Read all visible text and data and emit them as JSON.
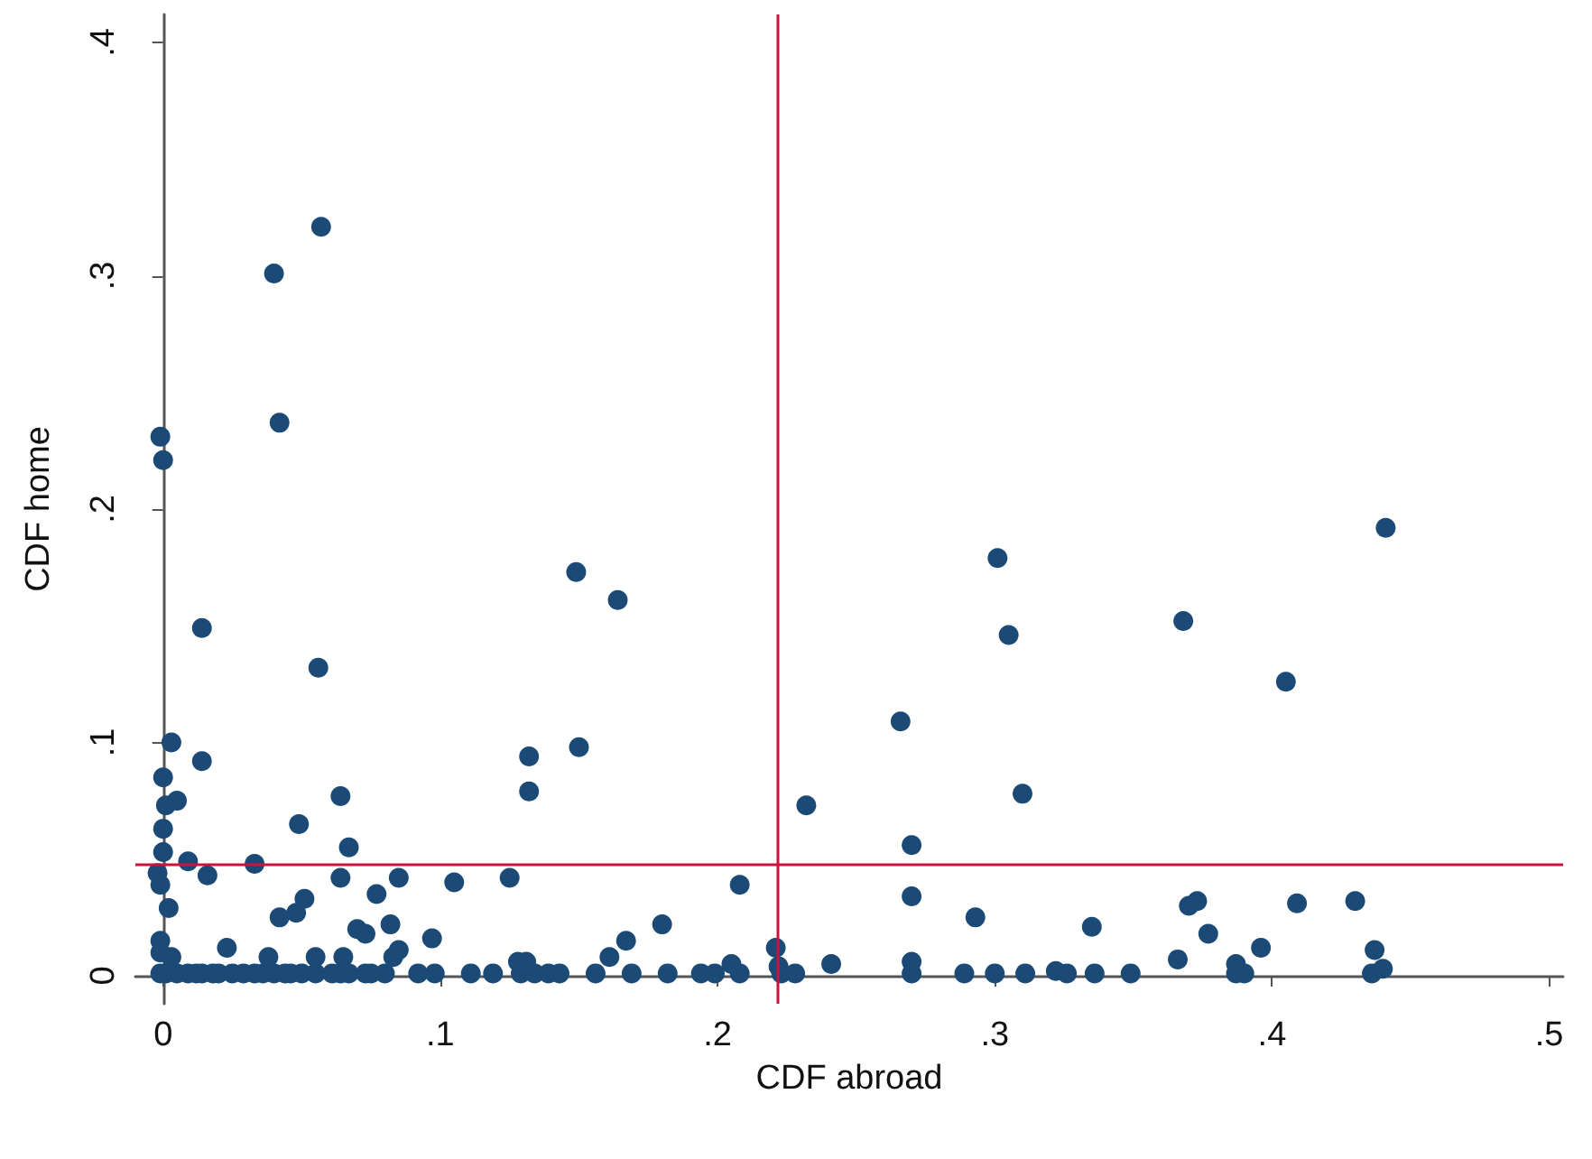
{
  "chart_data": {
    "type": "scatter",
    "xlabel": "CDF abroad",
    "ylabel": "CDF home",
    "xlim": [
      -0.01,
      0.505
    ],
    "ylim": [
      -0.012,
      0.412
    ],
    "xticks": [
      {
        "value": 0,
        "label": "0"
      },
      {
        "value": 0.1,
        "label": ".1"
      },
      {
        "value": 0.2,
        "label": ".2"
      },
      {
        "value": 0.3,
        "label": ".3"
      },
      {
        "value": 0.4,
        "label": ".4"
      },
      {
        "value": 0.5,
        "label": ".5"
      }
    ],
    "yticks": [
      {
        "value": 0,
        "label": "0"
      },
      {
        "value": 0.1,
        "label": ".1"
      },
      {
        "value": 0.2,
        "label": ".2"
      },
      {
        "value": 0.3,
        "label": ".3"
      },
      {
        "value": 0.4,
        "label": ".4"
      }
    ],
    "grid": false,
    "marker": "circle",
    "ref_lines": [
      {
        "axis": "x",
        "value": 0.2215,
        "label": null,
        "color": "#d0103a"
      },
      {
        "axis": "y",
        "value": 0.0478,
        "label": null,
        "color": "#d0103a"
      }
    ],
    "series": [
      {
        "color": "#1a4a75",
        "x": [
          0.04,
          0.057,
          0.042,
          -0.001,
          0,
          0.014,
          0.056,
          0.149,
          0.164,
          0.301,
          0.305,
          0.368,
          0.405,
          0.441,
          0.266,
          0.003,
          0.014,
          0.132,
          0.15,
          0.132,
          0.31,
          0.064,
          0.232,
          0,
          0.001,
          0.005,
          0.049,
          0,
          0.067,
          0.27,
          0,
          0.009,
          0.033,
          -0.002,
          0.016,
          -0.001,
          0.064,
          0.085,
          0.125,
          0.208,
          0.27,
          0.051,
          0.077,
          0.293,
          0.335,
          0.373,
          0.37,
          0.377,
          0.396,
          0.409,
          0.43,
          0.437,
          0.048,
          0.042,
          0.002,
          0.097,
          0.105,
          0.07,
          0.073,
          0.082,
          0.167,
          0.161,
          0.18,
          0.221,
          -0.001,
          -0.001,
          0.003,
          0.023,
          0.085,
          0.038,
          0.055,
          0.065,
          0.083,
          0.241,
          0.27,
          0.322,
          0.366,
          0.387,
          0.44,
          0.205,
          0.222,
          0.128,
          0.131,
          -0.001,
          0.001,
          0.005,
          0.009,
          0.012,
          0.014,
          0.018,
          0.02,
          0.025,
          0.029,
          0.033,
          0.036,
          0.04,
          0.044,
          0.046,
          0.05,
          0.055,
          0.061,
          0.064,
          0.067,
          0.073,
          0.075,
          0.08,
          0.092,
          0.098,
          0.111,
          0.119,
          0.129,
          0.134,
          0.139,
          0.143,
          0.156,
          0.169,
          0.182,
          0.194,
          0.199,
          0.208,
          0.223,
          0.228,
          0.27,
          0.289,
          0.3,
          0.311,
          0.326,
          0.336,
          0.349,
          0.387,
          0.39,
          0.436
        ],
        "values": [
          0.301,
          0.321,
          0.237,
          0.231,
          0.221,
          0.149,
          0.132,
          0.173,
          0.161,
          0.179,
          0.146,
          0.152,
          0.126,
          0.192,
          0.109,
          0.1,
          0.092,
          0.094,
          0.098,
          0.079,
          0.078,
          0.077,
          0.073,
          0.085,
          0.073,
          0.075,
          0.065,
          0.063,
          0.055,
          0.056,
          0.053,
          0.049,
          0.048,
          0.044,
          0.043,
          0.039,
          0.042,
          0.042,
          0.042,
          0.039,
          0.034,
          0.033,
          0.035,
          0.025,
          0.021,
          0.032,
          0.03,
          0.018,
          0.012,
          0.031,
          0.032,
          0.011,
          0.027,
          0.025,
          0.029,
          0.016,
          0.04,
          0.02,
          0.018,
          0.022,
          0.015,
          0.008,
          0.022,
          0.012,
          0.015,
          0.01,
          0.008,
          0.012,
          0.011,
          0.008,
          0.008,
          0.008,
          0.008,
          0.005,
          0.006,
          0.002,
          0.007,
          0.005,
          0.003,
          0.005,
          0.004,
          0.006,
          0.006,
          0.001,
          0.001,
          0.001,
          0.001,
          0.001,
          0.001,
          0.001,
          0.001,
          0.001,
          0.001,
          0.001,
          0.001,
          0.001,
          0.001,
          0.001,
          0.001,
          0.001,
          0.001,
          0.001,
          0.001,
          0.001,
          0.001,
          0.001,
          0.001,
          0.001,
          0.001,
          0.001,
          0.001,
          0.001,
          0.001,
          0.001,
          0.001,
          0.001,
          0.001,
          0.001,
          0.001,
          0.001,
          0.001,
          0.001,
          0.001,
          0.001,
          0.001,
          0.001,
          0.001,
          0.001,
          0.001,
          0.001,
          0.001,
          0.001
        ]
      }
    ]
  }
}
